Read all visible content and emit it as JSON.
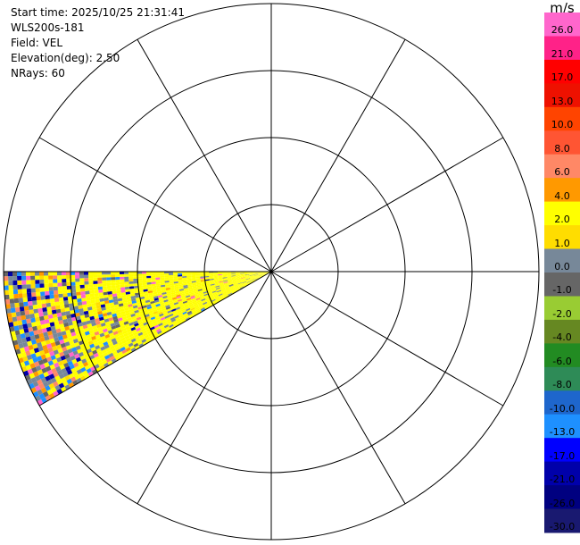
{
  "header": {
    "start_time": "Start time: 2025/10/25 21:31:41",
    "instrument": "WLS200s-181",
    "field": "Field: VEL",
    "elevation": "Elevation(deg): 2.50",
    "nrays": "NRays: 60"
  },
  "colorbar": {
    "unit": "m/s",
    "labels": [
      "26.0",
      "21.0",
      "17.0",
      "13.0",
      "10.0",
      "8.0",
      "6.0",
      "4.0",
      "2.0",
      "1.0",
      "0.0",
      "-1.0",
      "-2.0",
      "-4.0",
      "-6.0",
      "-8.0",
      "-10.0",
      "-13.0",
      "-17.0",
      "-21.0",
      "-26.0",
      "-30.0"
    ],
    "colors": [
      "#ff66cc",
      "#ff2288",
      "#ff0000",
      "#ee1100",
      "#ff4400",
      "#ff5533",
      "#ff8866",
      "#ff9900",
      "#ffff00",
      "#ffdd00",
      "#778899",
      "#666666",
      "#99cc33",
      "#668822",
      "#228b22",
      "#2e8b57",
      "#1e66cc",
      "#1e90ff",
      "#0000ff",
      "#0000aa",
      "#000080",
      "#191970"
    ]
  },
  "chart_data": {
    "type": "ppi",
    "field": "VEL",
    "range_rings": 4,
    "radial_lines": 12,
    "sector_azimuth_deg": [
      240,
      270
    ],
    "dominant_value_ms": 2.0,
    "series": [
      {
        "values": [
          2.0,
          1.0,
          0.0,
          -1.0,
          4.0,
          26.0,
          -13.0,
          -21.0,
          6.0
        ]
      }
    ]
  }
}
